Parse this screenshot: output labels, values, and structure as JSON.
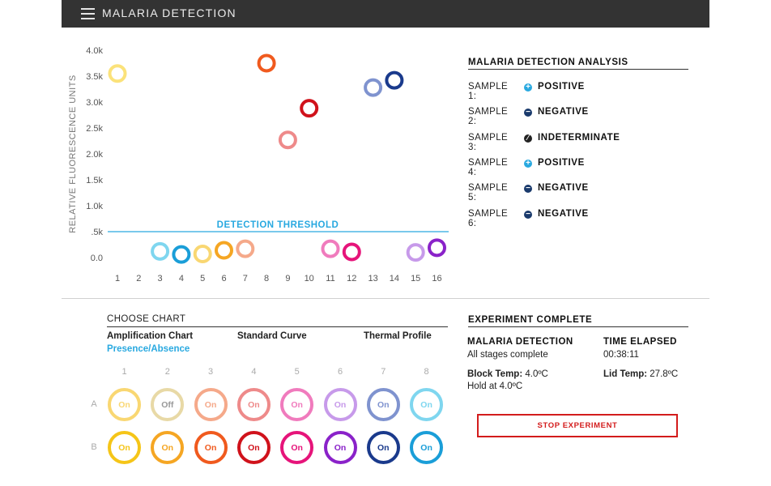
{
  "header": {
    "title": "MALARIA DETECTION",
    "menu_icon": "hamburger-menu-icon"
  },
  "chart_data": {
    "type": "scatter",
    "ylabel": "RELATIVE FLUORESCENCE UNITS",
    "xlabel": "",
    "x": [
      1,
      2,
      3,
      4,
      5,
      6,
      7,
      8,
      9,
      10,
      11,
      12,
      13,
      14,
      15,
      16
    ],
    "x_tick_labels": [
      "1",
      "2",
      "3",
      "4",
      "5",
      "6",
      "7",
      "8",
      "9",
      "10",
      "11",
      "12",
      "13",
      "14",
      "15",
      "16"
    ],
    "y_ticks": [
      0,
      500,
      1000,
      1500,
      2000,
      2500,
      3000,
      3500,
      4000
    ],
    "y_tick_labels": [
      "0.0",
      ".5k",
      "1.0k",
      "1.5k",
      "2.0k",
      "2.5k",
      "3.0k",
      "3.5k",
      "4.0k"
    ],
    "ylim": [
      0,
      4000
    ],
    "threshold": {
      "value": 500,
      "label": "DETECTION THRESHOLD",
      "color": "#29a9e0"
    },
    "points": [
      {
        "x": 1,
        "y": 3550,
        "color": "#fbe27a"
      },
      {
        "x": 3,
        "y": 120,
        "color": "#7fd6ef"
      },
      {
        "x": 4,
        "y": 60,
        "color": "#1a9ed8"
      },
      {
        "x": 5,
        "y": 70,
        "color": "#f9d772"
      },
      {
        "x": 6,
        "y": 140,
        "color": "#f5a623"
      },
      {
        "x": 7,
        "y": 170,
        "color": "#f5a98a"
      },
      {
        "x": 8,
        "y": 3750,
        "color": "#f05a1e"
      },
      {
        "x": 9,
        "y": 2270,
        "color": "#ee8a8a"
      },
      {
        "x": 10,
        "y": 2880,
        "color": "#d0121b"
      },
      {
        "x": 11,
        "y": 170,
        "color": "#f07bbd"
      },
      {
        "x": 12,
        "y": 110,
        "color": "#e6147a"
      },
      {
        "x": 13,
        "y": 3280,
        "color": "#7f93cf"
      },
      {
        "x": 14,
        "y": 3420,
        "color": "#1a3a8c"
      },
      {
        "x": 15,
        "y": 100,
        "color": "#c79aea"
      },
      {
        "x": 16,
        "y": 190,
        "color": "#8a22c9"
      }
    ],
    "grid": false
  },
  "analysis": {
    "title": "MALARIA DETECTION ANALYSIS",
    "samples": [
      {
        "label": "SAMPLE 1:",
        "status": "POSITIVE",
        "icon": "plus-icon",
        "icon_color": "#29a9e0"
      },
      {
        "label": "SAMPLE 2:",
        "status": "NEGATIVE",
        "icon": "minus-icon",
        "icon_color": "#1a3a6c"
      },
      {
        "label": "SAMPLE 3:",
        "status": "INDETERMINATE",
        "icon": "slash-icon",
        "icon_color": "#222222"
      },
      {
        "label": "SAMPLE 4:",
        "status": "POSITIVE",
        "icon": "plus-icon",
        "icon_color": "#29a9e0"
      },
      {
        "label": "SAMPLE 5:",
        "status": "NEGATIVE",
        "icon": "minus-icon",
        "icon_color": "#1a3a6c"
      },
      {
        "label": "SAMPLE 6:",
        "status": "NEGATIVE",
        "icon": "minus-icon",
        "icon_color": "#1a3a6c"
      }
    ]
  },
  "choose_chart": {
    "title": "CHOOSE CHART",
    "tabs": [
      "Amplification Chart",
      "Presence/Absence",
      "Standard Curve",
      "Thermal Profile"
    ],
    "active_tab": "Presence/Absence"
  },
  "plate": {
    "columns": [
      "1",
      "2",
      "3",
      "4",
      "5",
      "6",
      "7",
      "8"
    ],
    "rows": [
      {
        "label": "A",
        "wells": [
          {
            "state": "On",
            "color": "#f9d772"
          },
          {
            "state": "Off",
            "color": "#e8d9a6"
          },
          {
            "state": "On",
            "color": "#f5a98a"
          },
          {
            "state": "On",
            "color": "#ee8a8a"
          },
          {
            "state": "On",
            "color": "#f07bbd"
          },
          {
            "state": "On",
            "color": "#c79aea"
          },
          {
            "state": "On",
            "color": "#7f93cf"
          },
          {
            "state": "On",
            "color": "#7fd6ef"
          }
        ]
      },
      {
        "label": "B",
        "wells": [
          {
            "state": "On",
            "color": "#f5c518"
          },
          {
            "state": "On",
            "color": "#f5a623"
          },
          {
            "state": "On",
            "color": "#f05a1e"
          },
          {
            "state": "On",
            "color": "#d0121b"
          },
          {
            "state": "On",
            "color": "#e6147a"
          },
          {
            "state": "On",
            "color": "#8a22c9"
          },
          {
            "state": "On",
            "color": "#1a3a8c"
          },
          {
            "state": "On",
            "color": "#1a9ed8"
          }
        ]
      }
    ]
  },
  "experiment": {
    "title": "EXPERIMENT COMPLETE",
    "name_label": "MALARIA DETECTION",
    "name_value": "All stages complete",
    "time_label": "TIME ELAPSED",
    "time_value": "00:38:11",
    "block_label": "Block Temp:",
    "block_value": " 4.0ºC",
    "hold_value": "Hold at 4.0ºC",
    "lid_label": "Lid Temp:",
    "lid_value": " 27.8ºC",
    "stop_label": "STOP EXPERIMENT"
  },
  "colors": {
    "accent": "#29a9e0",
    "stop": "#d31c1c",
    "topbar": "#333333"
  }
}
